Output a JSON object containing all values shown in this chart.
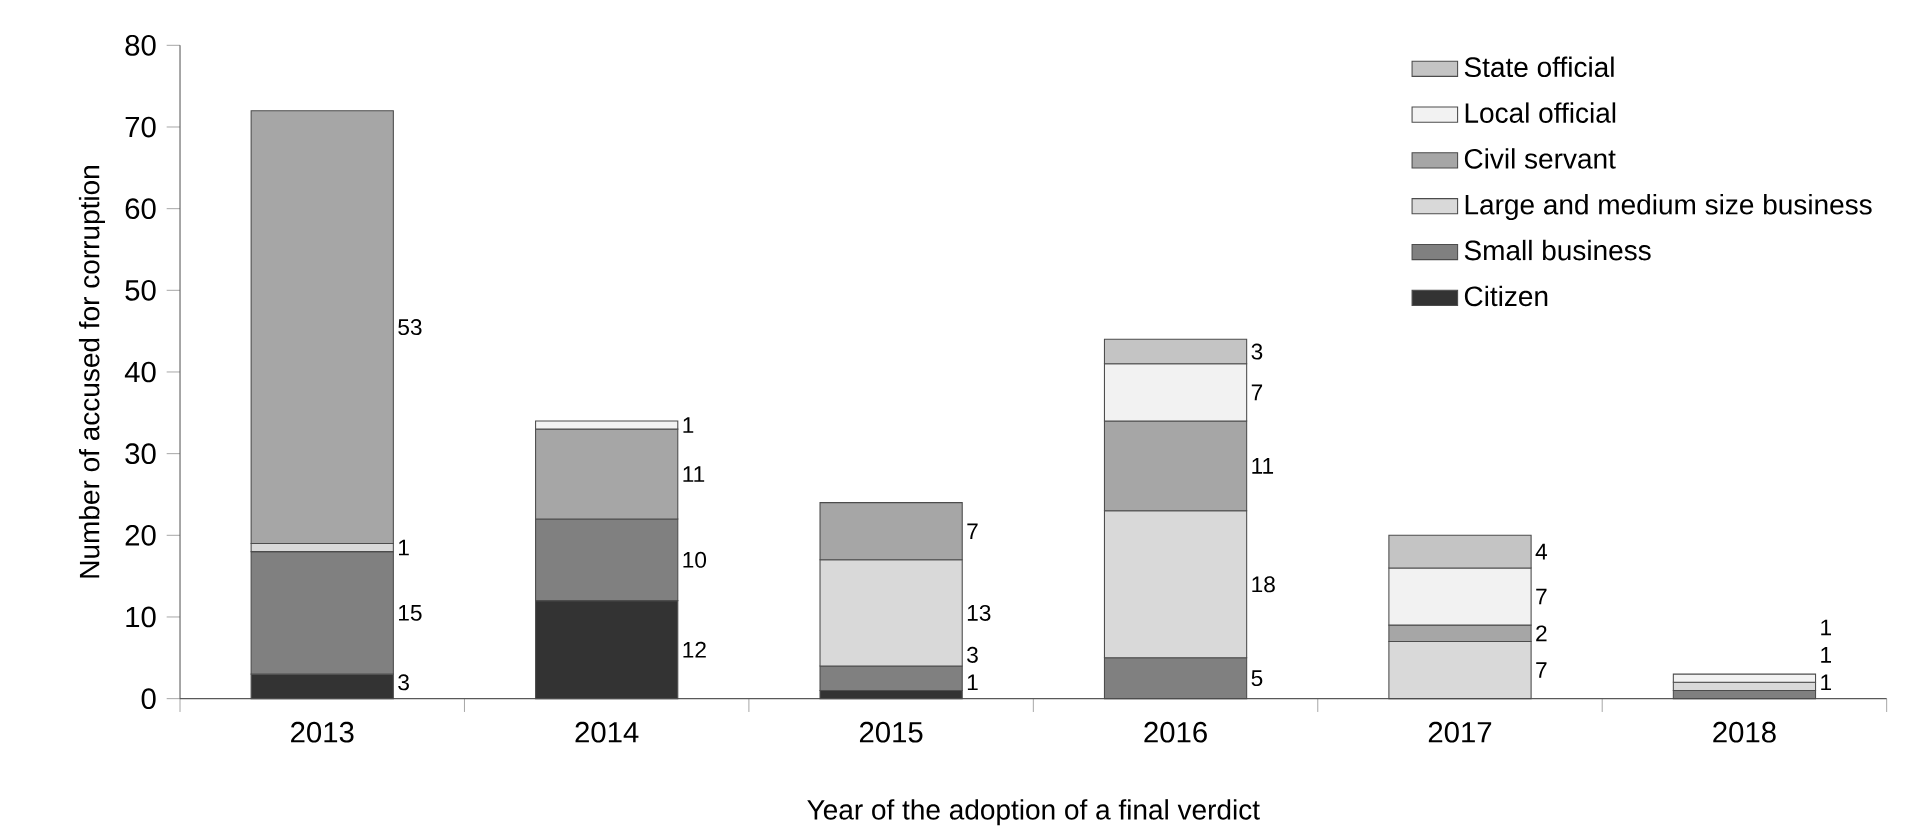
{
  "chart_data": {
    "type": "bar",
    "stacked": true,
    "xlabel": "Year of the adoption of a final verdict",
    "ylabel": "Number of accused for corruption",
    "categories": [
      "2013",
      "2014",
      "2015",
      "2016",
      "2017",
      "2018"
    ],
    "ylim": [
      0,
      80
    ],
    "yticks": [
      0,
      10,
      20,
      30,
      40,
      50,
      60,
      70,
      80
    ],
    "legend": "top right",
    "data_labels": true,
    "series": [
      {
        "name": "Citizen",
        "color": "#333333",
        "values": [
          3,
          12,
          1,
          null,
          null,
          null
        ]
      },
      {
        "name": "Small business",
        "color": "#808080",
        "values": [
          15,
          10,
          3,
          5,
          null,
          1
        ]
      },
      {
        "name": "Large and medium size business",
        "color": "#d9d9d9",
        "values": [
          1,
          null,
          13,
          18,
          7,
          1
        ]
      },
      {
        "name": "Civil servant",
        "color": "#a6a6a6",
        "values": [
          53,
          11,
          7,
          11,
          2,
          null
        ]
      },
      {
        "name": "Local official",
        "color": "#f2f2f2",
        "values": [
          null,
          1,
          null,
          7,
          7,
          1
        ]
      },
      {
        "name": "State official",
        "color": "#c4c4c4",
        "values": [
          null,
          null,
          null,
          3,
          4,
          null
        ]
      }
    ]
  }
}
